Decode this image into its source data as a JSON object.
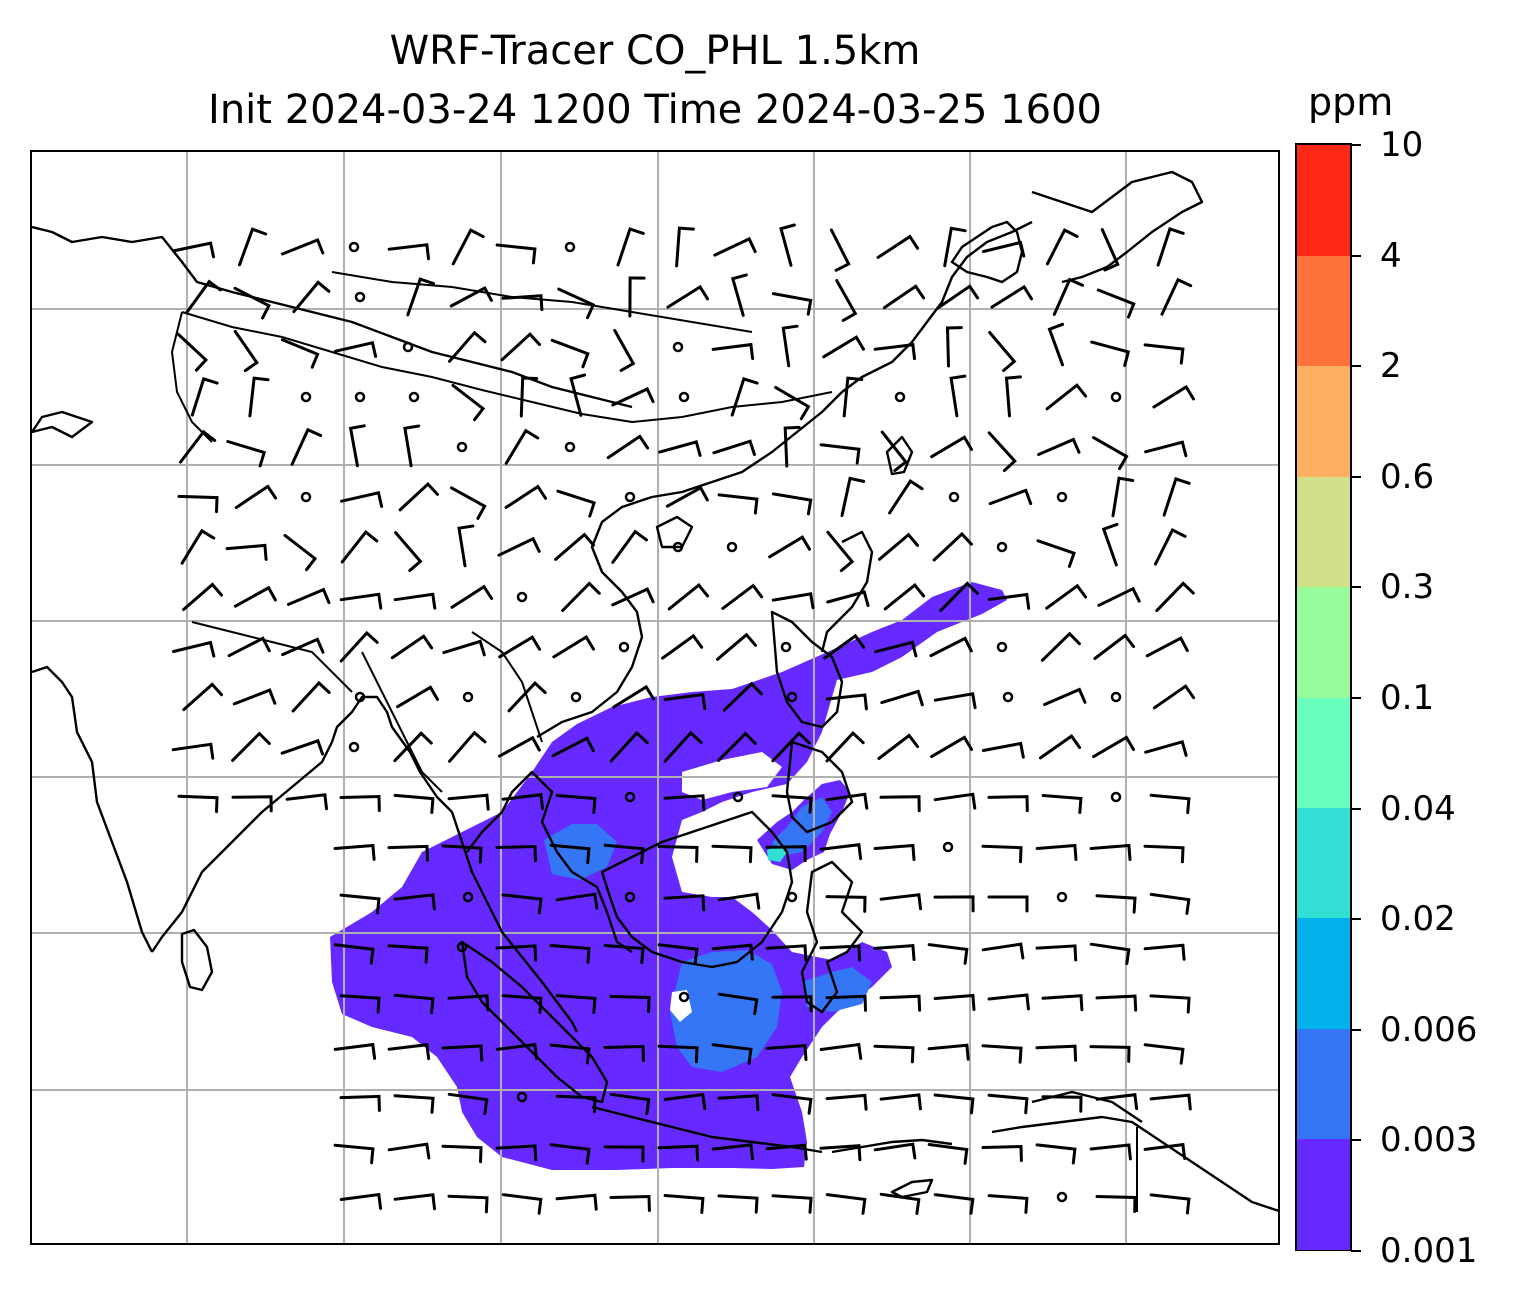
{
  "title": {
    "line1": "WRF-Tracer CO_PHL 1.5km",
    "line2": "Init 2024-03-24 1200 Time 2024-03-25 1600"
  },
  "colorbar": {
    "unit": "ppm",
    "levels": [
      "0.001",
      "0.003",
      "0.006",
      "0.02",
      "0.04",
      "0.1",
      "0.3",
      "0.6",
      "2",
      "4",
      "10"
    ],
    "colors": [
      "#6629ff",
      "#3476f5",
      "#03b2ea",
      "#31dfd4",
      "#6afebf",
      "#99fc9a",
      "#d0e088",
      "#feaf61",
      "#ff723b",
      "#ff2916"
    ]
  },
  "map": {
    "features": [
      "coastlines",
      "country-borders",
      "gridlines",
      "wind-barbs",
      "tracer-plume"
    ],
    "plume_colors": {
      "low": "#6629ff",
      "mid": "#3476f5",
      "high": "#31dfd4"
    },
    "gridline_color": "#b0b0b0"
  }
}
